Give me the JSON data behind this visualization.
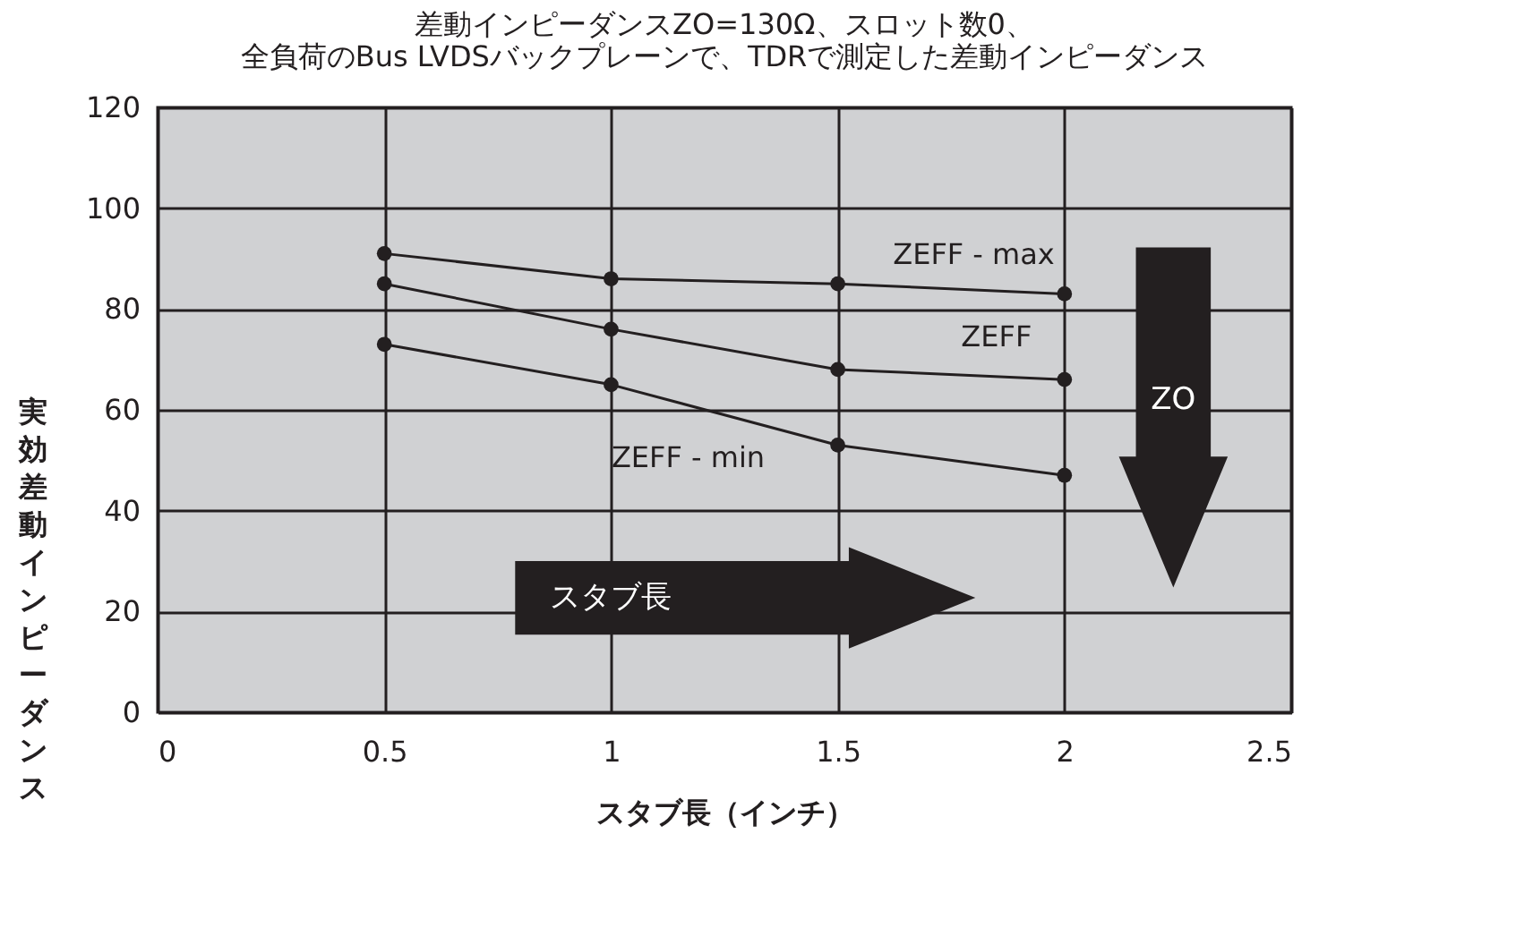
{
  "chart_data": {
    "type": "line",
    "title": "差動インピーダンスZO=130Ω、スロット数0、",
    "subtitle": "全負荷のBus LVDSバックプレーンで、TDRで測定した差動インピーダンス",
    "xlabel": "スタブ長（インチ）",
    "ylabel": "実効差動インピーダンス",
    "x": [
      0.5,
      1,
      1.5,
      2
    ],
    "series": [
      {
        "name": "ZEFF - max",
        "color": "#231f20",
        "values": [
          91,
          86,
          85,
          83
        ]
      },
      {
        "name": "ZEFF",
        "color": "#231f20",
        "values": [
          85,
          76,
          68,
          66
        ]
      },
      {
        "name": "ZEFF - min",
        "color": "#231f20",
        "values": [
          73,
          65,
          53,
          47
        ]
      }
    ],
    "xlim": [
      0,
      2.5
    ],
    "xticks": [
      0,
      0.5,
      1,
      1.5,
      2,
      2.5
    ],
    "ylim": [
      0,
      120
    ],
    "yticks": [
      0,
      20,
      40,
      60,
      80,
      100,
      120
    ],
    "grid": true,
    "marker": "circle",
    "line_style": "solid",
    "annotations": [
      "スタブ長",
      "ZO"
    ]
  }
}
